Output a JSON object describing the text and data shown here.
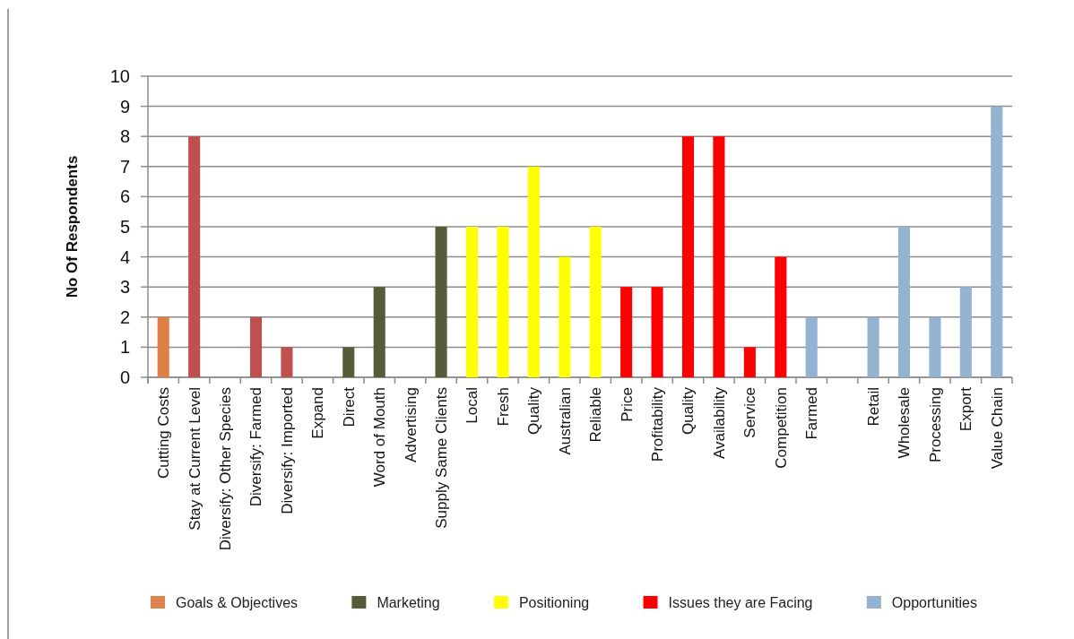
{
  "chart_data": {
    "type": "bar",
    "ylabel": "No Of Respondents",
    "categories": [
      "Cutting Costs",
      "Stay at Current Level",
      "Diversify: Other Species",
      "Diversify: Farmed",
      "Diversify: Imported",
      "Expand",
      "Direct",
      "Word of Mouth",
      "Advertising",
      "Supply Same Clients",
      "Local",
      "Fresh",
      "Quality",
      "Australian",
      "Reliable",
      "Price",
      "Profitability",
      "Quality",
      "Availability",
      "Service",
      "Competition",
      "Farmed",
      null,
      "Retail",
      "Wholesale",
      "Processing",
      "Export",
      "Value Chain"
    ],
    "series": [
      {
        "name": "Goals & Objectives",
        "color": "#e0804a",
        "colors": [
          "#e07f45",
          "#c0504d",
          "#c0504d",
          "#c0504d",
          "#c0504d",
          "#c0504d",
          null,
          null,
          null,
          null,
          null,
          null,
          null,
          null,
          null,
          null,
          null,
          null,
          null,
          null,
          null,
          null,
          null,
          null,
          null,
          null,
          null,
          null
        ],
        "values": [
          2,
          8,
          0,
          2,
          1,
          0,
          null,
          null,
          null,
          null,
          null,
          null,
          null,
          null,
          null,
          null,
          null,
          null,
          null,
          null,
          null,
          null,
          null,
          null,
          null,
          null,
          null,
          null
        ]
      },
      {
        "name": "Marketing",
        "color": "#545c3a",
        "values": [
          null,
          null,
          null,
          null,
          null,
          null,
          1,
          3,
          0,
          5,
          null,
          null,
          null,
          null,
          null,
          null,
          null,
          null,
          null,
          null,
          null,
          null,
          null,
          null,
          null,
          null,
          null,
          null
        ]
      },
      {
        "name": "Positioning",
        "color": "#ffff00",
        "values": [
          null,
          null,
          null,
          null,
          null,
          null,
          null,
          null,
          null,
          null,
          5,
          5,
          7,
          4,
          5,
          null,
          null,
          null,
          null,
          null,
          null,
          null,
          null,
          null,
          null,
          null,
          null,
          null
        ]
      },
      {
        "name": "Issues they are Facing",
        "color": "#ff0000",
        "values": [
          null,
          null,
          null,
          null,
          null,
          null,
          null,
          null,
          null,
          null,
          null,
          null,
          null,
          null,
          null,
          3,
          3,
          8,
          8,
          1,
          4,
          null,
          null,
          null,
          null,
          null,
          null,
          null
        ]
      },
      {
        "name": "Opportunities",
        "color": "#93b3d1",
        "values": [
          null,
          null,
          null,
          null,
          null,
          null,
          null,
          null,
          null,
          null,
          null,
          null,
          null,
          null,
          null,
          null,
          null,
          null,
          null,
          null,
          null,
          2,
          0,
          2,
          5,
          2,
          3,
          9
        ]
      }
    ],
    "ylim": [
      0,
      10
    ],
    "yticks": [
      0,
      1,
      2,
      3,
      4,
      5,
      6,
      7,
      8,
      9,
      10
    ],
    "grid": "y",
    "legend": "bottom"
  }
}
